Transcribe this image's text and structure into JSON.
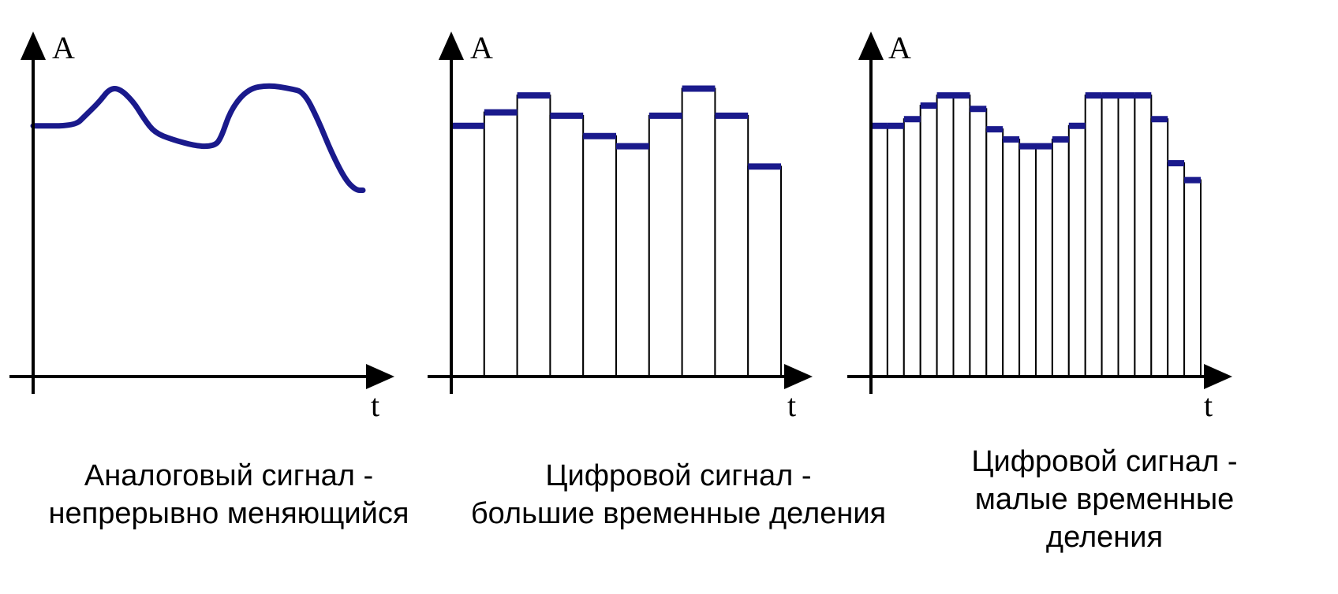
{
  "panels": [
    {
      "id": "analog",
      "y_axis_label": "A",
      "x_axis_label": "t",
      "caption": [
        "Аналоговый сигнал -",
        "непрерывно меняющийся"
      ],
      "signal_type": "continuous",
      "signal_color": "#1a1a8c",
      "signal_points": [
        [
          0,
          0.74
        ],
        [
          0.12,
          0.74
        ],
        [
          0.15,
          0.77
        ],
        [
          0.19,
          0.81
        ],
        [
          0.22,
          0.85
        ],
        [
          0.25,
          0.85
        ],
        [
          0.29,
          0.81
        ],
        [
          0.32,
          0.76
        ],
        [
          0.35,
          0.72
        ],
        [
          0.4,
          0.7
        ],
        [
          0.47,
          0.68
        ],
        [
          0.52,
          0.68
        ],
        [
          0.54,
          0.7
        ],
        [
          0.57,
          0.79
        ],
        [
          0.62,
          0.85
        ],
        [
          0.68,
          0.86
        ],
        [
          0.74,
          0.85
        ],
        [
          0.78,
          0.84
        ],
        [
          0.82,
          0.76
        ],
        [
          0.86,
          0.66
        ],
        [
          0.9,
          0.58
        ],
        [
          0.93,
          0.55
        ],
        [
          0.95,
          0.55
        ]
      ]
    },
    {
      "id": "digital-large",
      "y_axis_label": "A",
      "x_axis_label": "t",
      "caption": [
        "Цифровой сигнал -",
        "большие временные деления"
      ],
      "signal_type": "step",
      "signal_color": "#1a1a8c",
      "step_values": [
        0.74,
        0.78,
        0.83,
        0.77,
        0.71,
        0.68,
        0.77,
        0.85,
        0.77,
        0.62
      ],
      "x_end": 0.95
    },
    {
      "id": "digital-small",
      "y_axis_label": "A",
      "x_axis_label": "t",
      "caption": [
        "Цифровой сигнал -",
        "малые временные",
        "деления"
      ],
      "signal_type": "step",
      "signal_color": "#1a1a8c",
      "step_values": [
        0.74,
        0.74,
        0.76,
        0.8,
        0.83,
        0.83,
        0.79,
        0.73,
        0.7,
        0.68,
        0.68,
        0.7,
        0.74,
        0.83,
        0.83,
        0.83,
        0.83,
        0.76,
        0.63,
        0.58
      ],
      "x_end": 0.95
    }
  ]
}
